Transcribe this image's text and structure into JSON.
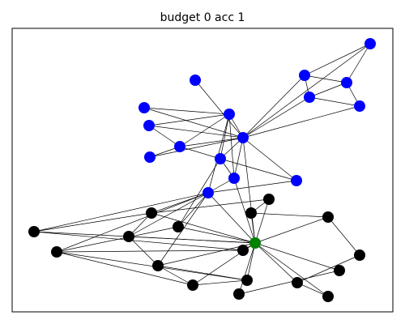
{
  "title": "budget 0 acc 1",
  "graph": {
    "colors": {
      "blue": "#0000ff",
      "black": "#000000",
      "green": "#008000"
    },
    "nodes": [
      {
        "id": "b1",
        "group": "blue"
      },
      {
        "id": "b2",
        "group": "blue"
      },
      {
        "id": "b3",
        "group": "blue"
      },
      {
        "id": "b4",
        "group": "blue"
      },
      {
        "id": "b5",
        "group": "blue"
      },
      {
        "id": "b6",
        "group": "blue"
      },
      {
        "id": "b7",
        "group": "blue"
      },
      {
        "id": "b8",
        "group": "blue"
      },
      {
        "id": "b9",
        "group": "blue"
      },
      {
        "id": "b10",
        "group": "blue"
      },
      {
        "id": "b11",
        "group": "blue"
      },
      {
        "id": "b12",
        "group": "blue"
      },
      {
        "id": "b13",
        "group": "blue"
      },
      {
        "id": "b14",
        "group": "blue"
      },
      {
        "id": "b15",
        "group": "blue"
      },
      {
        "id": "b16",
        "group": "blue"
      },
      {
        "id": "k1",
        "group": "black"
      },
      {
        "id": "k2",
        "group": "black"
      },
      {
        "id": "k3",
        "group": "black"
      },
      {
        "id": "k4",
        "group": "black"
      },
      {
        "id": "k5",
        "group": "black"
      },
      {
        "id": "k6",
        "group": "black"
      },
      {
        "id": "k7",
        "group": "black"
      },
      {
        "id": "k8",
        "group": "black"
      },
      {
        "id": "k9",
        "group": "black"
      },
      {
        "id": "k10",
        "group": "black"
      },
      {
        "id": "k11",
        "group": "black"
      },
      {
        "id": "k12",
        "group": "black"
      },
      {
        "id": "k13",
        "group": "black"
      },
      {
        "id": "k14",
        "group": "black"
      },
      {
        "id": "k15",
        "group": "black"
      },
      {
        "id": "k16",
        "group": "black"
      },
      {
        "id": "k17",
        "group": "black"
      },
      {
        "id": "g1",
        "group": "green"
      }
    ],
    "edges": [
      [
        "b1",
        "b2"
      ],
      [
        "b1",
        "b3"
      ],
      [
        "b2",
        "b3"
      ],
      [
        "b2",
        "b4"
      ],
      [
        "b3",
        "b4"
      ],
      [
        "b4",
        "b5"
      ],
      [
        "b3",
        "b5"
      ],
      [
        "b2",
        "b13"
      ],
      [
        "b4",
        "b13"
      ],
      [
        "b5",
        "b13"
      ],
      [
        "b6",
        "b13"
      ],
      [
        "b1",
        "b13"
      ],
      [
        "b7",
        "b13"
      ],
      [
        "b8",
        "b13"
      ],
      [
        "b9",
        "b13"
      ],
      [
        "b10",
        "b13"
      ],
      [
        "b11",
        "b13"
      ],
      [
        "b12",
        "b13"
      ],
      [
        "b14",
        "b13"
      ],
      [
        "b15",
        "b13"
      ],
      [
        "b7",
        "b12"
      ],
      [
        "b8",
        "b12"
      ],
      [
        "b10",
        "b12"
      ],
      [
        "b10",
        "b11"
      ],
      [
        "b12",
        "b11"
      ],
      [
        "b12",
        "b14"
      ],
      [
        "b12",
        "b16"
      ],
      [
        "b10",
        "b9"
      ],
      [
        "b11",
        "b14"
      ],
      [
        "b11",
        "b15"
      ],
      [
        "b14",
        "b16"
      ],
      [
        "b8",
        "b10"
      ],
      [
        "b16",
        "b15"
      ],
      [
        "b16",
        "k1"
      ],
      [
        "b16",
        "k2"
      ],
      [
        "b16",
        "k3"
      ],
      [
        "b16",
        "k4"
      ],
      [
        "b16",
        "k5"
      ],
      [
        "b16",
        "k6"
      ],
      [
        "b16",
        "g1"
      ],
      [
        "b14",
        "g1"
      ],
      [
        "b13",
        "g1"
      ],
      [
        "b11",
        "k3"
      ],
      [
        "k1",
        "k2"
      ],
      [
        "k1",
        "k4"
      ],
      [
        "k1",
        "k7"
      ],
      [
        "k1",
        "g1"
      ],
      [
        "k7",
        "k8"
      ],
      [
        "k7",
        "g1"
      ],
      [
        "k8",
        "k9"
      ],
      [
        "k8",
        "g1"
      ],
      [
        "k4",
        "k10"
      ],
      [
        "k4",
        "g1"
      ],
      [
        "k10",
        "k5"
      ],
      [
        "k10",
        "g1"
      ],
      [
        "k3",
        "k5"
      ],
      [
        "k3",
        "g1"
      ],
      [
        "k2",
        "k6"
      ],
      [
        "k2",
        "g1"
      ],
      [
        "k6",
        "g1"
      ],
      [
        "k6",
        "k11"
      ],
      [
        "k6",
        "k12"
      ],
      [
        "k11",
        "k12"
      ],
      [
        "k9",
        "k13"
      ],
      [
        "k9",
        "g1"
      ],
      [
        "g1",
        "k14"
      ],
      [
        "g1",
        "k15"
      ],
      [
        "g1",
        "k16"
      ],
      [
        "g1",
        "k17"
      ],
      [
        "g1",
        "k12"
      ],
      [
        "g1",
        "k11"
      ],
      [
        "k13",
        "k15"
      ],
      [
        "k14",
        "k16"
      ],
      [
        "k5",
        "k11"
      ],
      [
        "k5",
        "k12"
      ],
      [
        "k15",
        "k17"
      ]
    ]
  }
}
